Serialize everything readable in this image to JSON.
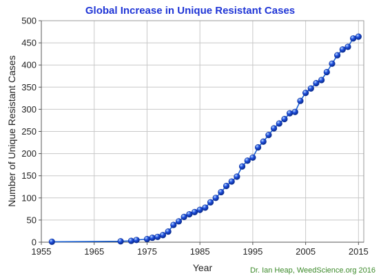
{
  "chart_data": {
    "type": "line",
    "title": "Global Increase in Unique Resistant Cases",
    "xlabel": "Year",
    "ylabel": "Number of Unique Resistant Cases",
    "xlim": [
      1955,
      2016
    ],
    "ylim": [
      0,
      500
    ],
    "x_ticks": [
      "1955",
      "1965",
      "1975",
      "1985",
      "1995",
      "2005",
      "2015"
    ],
    "y_ticks": [
      "0",
      "50",
      "100",
      "150",
      "200",
      "250",
      "300",
      "350",
      "400",
      "450",
      "500"
    ],
    "grid": true,
    "colors": {
      "line": "#1a5fd0",
      "marker": "#1f4fe0",
      "grid": "#c8c8c8",
      "title": "#1f35d6",
      "credit": "#3c8a2a"
    },
    "series": [
      {
        "x": [
          1957,
          1970,
          1972,
          1973,
          1975,
          1976,
          1977,
          1978,
          1979,
          1980,
          1981,
          1982,
          1983,
          1984,
          1985,
          1986,
          1987,
          1988,
          1989,
          1990,
          1991,
          1992,
          1993,
          1994,
          1995,
          1996,
          1997,
          1998,
          1999,
          2000,
          2001,
          2002,
          2003,
          2004,
          2005,
          2006,
          2007,
          2008,
          2009,
          2010,
          2011,
          2012,
          2013,
          2014,
          2015
        ],
        "values": [
          1,
          2,
          3,
          5,
          7,
          10,
          12,
          16,
          24,
          39,
          47,
          57,
          63,
          68,
          73,
          78,
          90,
          100,
          113,
          127,
          137,
          148,
          171,
          184,
          191,
          214,
          227,
          242,
          257,
          268,
          278,
          291,
          294,
          319,
          337,
          347,
          359,
          366,
          384,
          403,
          422,
          435,
          441,
          460,
          464
        ]
      }
    ],
    "annotation": "Dr. Ian Heap, WeedScience.org  2016"
  }
}
